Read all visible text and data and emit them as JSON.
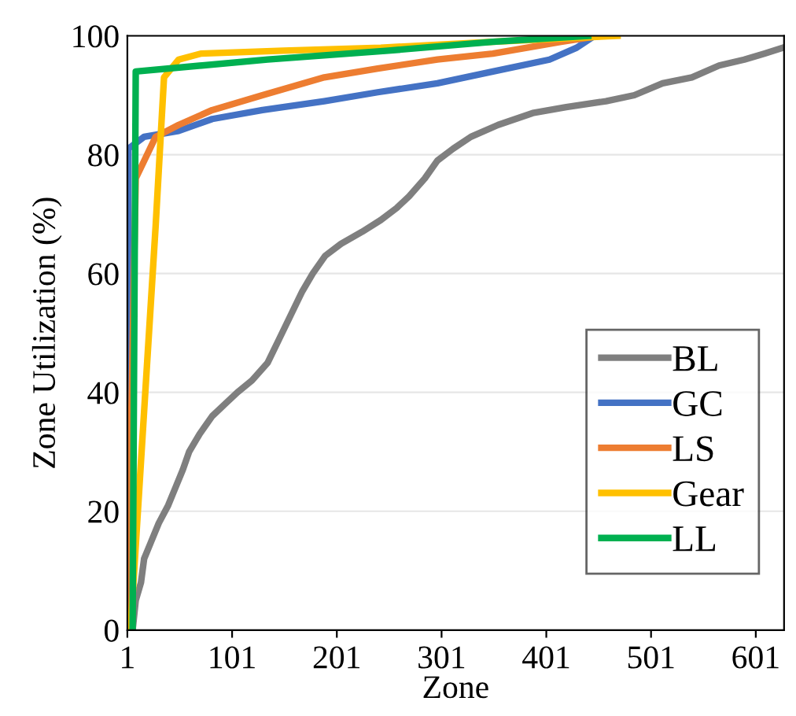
{
  "chart_data": {
    "type": "line",
    "xlabel": "Zone",
    "ylabel": "Zone Utilization (%)",
    "xlim": [
      1,
      628
    ],
    "xticks": [
      1,
      101,
      201,
      301,
      401,
      501,
      601
    ],
    "ylim": [
      0,
      100
    ],
    "yticks": [
      0,
      20,
      40,
      60,
      80,
      100
    ],
    "grid": "y",
    "legend": "right",
    "line_style": "solid",
    "marker": "none",
    "series": [
      {
        "name": "BL",
        "color": "#7f7f7f",
        "x": [
          6,
          9,
          14,
          17,
          24,
          31,
          40,
          47,
          54,
          60,
          70,
          82,
          94,
          106,
          120,
          135,
          146,
          157,
          168,
          178,
          190,
          205,
          225,
          243,
          258,
          270,
          285,
          297,
          312,
          329,
          355,
          388,
          420,
          458,
          485,
          512,
          540,
          566,
          590,
          609,
          627
        ],
        "values": [
          0,
          5,
          8,
          12,
          15,
          18,
          21,
          24,
          27,
          30,
          33,
          36,
          38,
          40,
          42,
          45,
          49,
          53,
          57,
          60,
          63,
          65,
          67,
          69,
          71,
          73,
          76,
          79,
          81,
          83,
          85,
          87,
          88,
          89,
          90,
          92,
          93,
          95,
          96,
          97,
          98
        ]
      },
      {
        "name": "GC",
        "color": "#4472c4",
        "x": [
          1,
          2,
          17,
          50,
          82,
          130,
          189,
          240,
          297,
          350,
          404,
          430,
          447
        ],
        "values": [
          0,
          81,
          83,
          84,
          86,
          87.5,
          89,
          90.5,
          92,
          94,
          96,
          98,
          100
        ]
      },
      {
        "name": "LS",
        "color": "#ed7d31",
        "x": [
          1,
          9,
          28,
          50,
          82,
          130,
          189,
          240,
          297,
          350,
          415,
          452
        ],
        "values": [
          0,
          76,
          83,
          85,
          87.5,
          90,
          93,
          94.5,
          96,
          97,
          99,
          100
        ]
      },
      {
        "name": "Gear",
        "color": "#ffc000",
        "x": [
          4,
          28,
          36,
          50,
          71,
          150,
          243,
          350,
          469
        ],
        "values": [
          0,
          68,
          93,
          96,
          97,
          97.5,
          98,
          99,
          100
        ]
      },
      {
        "name": "LL",
        "color": "#00b050",
        "x": [
          6,
          9,
          135,
          250,
          350,
          441
        ],
        "values": [
          0,
          94,
          96,
          97.5,
          99,
          100
        ]
      }
    ]
  }
}
